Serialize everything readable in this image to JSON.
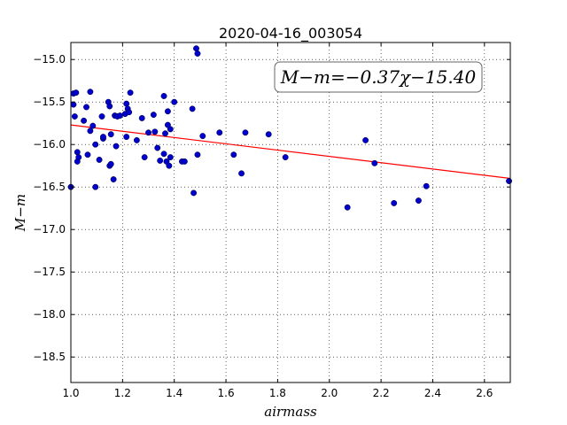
{
  "chart_data": {
    "type": "scatter",
    "title": "2020-04-16_003054",
    "xlabel": "airmass",
    "ylabel": "M−m",
    "xlim": [
      1.0,
      2.7
    ],
    "ylim": [
      -18.8,
      -14.8
    ],
    "y_inverted": true,
    "grid": true,
    "grid_style": "dotted",
    "x_ticks": [
      1.0,
      1.2,
      1.4,
      1.6,
      1.8,
      2.0,
      2.2,
      2.4,
      2.6
    ],
    "x_tick_labels": [
      "1.0",
      "1.2",
      "1.4",
      "1.6",
      "1.8",
      "2.0",
      "2.2",
      "2.4",
      "2.6"
    ],
    "y_ticks": [
      -15.0,
      -15.5,
      -16.0,
      -16.5,
      -17.0,
      -17.5,
      -18.0,
      -18.5
    ],
    "y_tick_labels": [
      "−15.0",
      "−15.5",
      "−16.0",
      "−16.5",
      "−17.0",
      "−17.5",
      "−18.0",
      "−18.5"
    ],
    "annotation": "M−m=−0.37χ−15.40",
    "fit_line": {
      "slope": -0.37,
      "intercept": -15.4,
      "x_range": [
        1.0,
        2.7
      ],
      "color": "#ff0000"
    },
    "marker_color": "#0000cc",
    "points": [
      [
        1.0,
        -16.5
      ],
      [
        1.01,
        -15.4
      ],
      [
        1.01,
        -15.53
      ],
      [
        1.015,
        -15.67
      ],
      [
        1.02,
        -15.39
      ],
      [
        1.025,
        -16.09
      ],
      [
        1.025,
        -16.2
      ],
      [
        1.03,
        -16.15
      ],
      [
        1.05,
        -15.72
      ],
      [
        1.06,
        -15.56
      ],
      [
        1.065,
        -16.12
      ],
      [
        1.075,
        -15.38
      ],
      [
        1.075,
        -15.84
      ],
      [
        1.085,
        -15.78
      ],
      [
        1.095,
        -16.5
      ],
      [
        1.095,
        -16.0
      ],
      [
        1.11,
        -16.18
      ],
      [
        1.12,
        -15.67
      ],
      [
        1.125,
        -15.93
      ],
      [
        1.125,
        -15.91
      ],
      [
        1.145,
        -15.5
      ],
      [
        1.15,
        -15.55
      ],
      [
        1.15,
        -16.25
      ],
      [
        1.155,
        -16.23
      ],
      [
        1.155,
        -15.88
      ],
      [
        1.165,
        -16.41
      ],
      [
        1.17,
        -15.66
      ],
      [
        1.175,
        -16.02
      ],
      [
        1.18,
        -15.67
      ],
      [
        1.19,
        -15.66
      ],
      [
        1.21,
        -15.64
      ],
      [
        1.215,
        -15.52
      ],
      [
        1.215,
        -15.91
      ],
      [
        1.22,
        -15.58
      ],
      [
        1.225,
        -15.62
      ],
      [
        1.23,
        -15.39
      ],
      [
        1.255,
        -15.95
      ],
      [
        1.275,
        -15.69
      ],
      [
        1.285,
        -16.15
      ],
      [
        1.3,
        -15.86
      ],
      [
        1.32,
        -15.65
      ],
      [
        1.325,
        -15.85
      ],
      [
        1.335,
        -16.04
      ],
      [
        1.345,
        -16.19
      ],
      [
        1.36,
        -16.11
      ],
      [
        1.36,
        -15.43
      ],
      [
        1.365,
        -15.87
      ],
      [
        1.37,
        -16.2
      ],
      [
        1.375,
        -15.61
      ],
      [
        1.375,
        -15.77
      ],
      [
        1.38,
        -16.25
      ],
      [
        1.385,
        -15.82
      ],
      [
        1.385,
        -16.15
      ],
      [
        1.4,
        -15.5
      ],
      [
        1.43,
        -16.2
      ],
      [
        1.44,
        -16.2
      ],
      [
        1.47,
        -15.58
      ],
      [
        1.475,
        -16.57
      ],
      [
        1.485,
        -14.87
      ],
      [
        1.49,
        -14.93
      ],
      [
        1.49,
        -16.12
      ],
      [
        1.51,
        -15.9
      ],
      [
        1.575,
        -15.86
      ],
      [
        1.63,
        -16.12
      ],
      [
        1.66,
        -16.34
      ],
      [
        1.675,
        -15.86
      ],
      [
        1.765,
        -15.88
      ],
      [
        1.83,
        -16.15
      ],
      [
        2.07,
        -16.74
      ],
      [
        2.14,
        -15.95
      ],
      [
        2.175,
        -16.22
      ],
      [
        2.25,
        -16.69
      ],
      [
        2.345,
        -16.66
      ],
      [
        2.375,
        -16.49
      ],
      [
        2.695,
        -16.43
      ]
    ]
  }
}
